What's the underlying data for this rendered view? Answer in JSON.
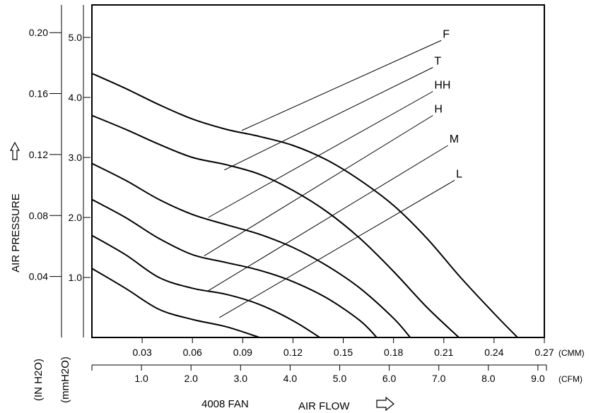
{
  "chart_data": {
    "type": "line",
    "title": "",
    "subtitle": "4008 FAN",
    "xlabel": "AIR FLOW",
    "ylabel": "AIR PRESSURE",
    "x_units": {
      "primary": "(CMM)",
      "secondary": "(CFM)"
    },
    "y_units": {
      "primary": "(mmH2O)",
      "secondary": "(IN H2O)"
    },
    "xlim": [
      0,
      0.27
    ],
    "ylim": [
      0,
      5.5
    ],
    "x_ticks_cmm": [
      "0.03",
      "0.06",
      "0.09",
      "0.12",
      "0.15",
      "0.18",
      "0.21",
      "0.24",
      "0.27"
    ],
    "x_ticks_cfm": [
      "1.0",
      "2.0",
      "3.0",
      "4.0",
      "5.0",
      "6.0",
      "7.0",
      "8.0",
      "9.0"
    ],
    "y_ticks_mmh2o": [
      "1.0",
      "2.0",
      "3.0",
      "4.0",
      "5.0"
    ],
    "y_ticks_inh2o": [
      "0.04",
      "0.08",
      "0.12",
      "0.16",
      "0.20"
    ],
    "grid": false,
    "series": [
      {
        "name": "F",
        "x": [
          0,
          0.02,
          0.04,
          0.06,
          0.08,
          0.1,
          0.12,
          0.14,
          0.16,
          0.18,
          0.2,
          0.22,
          0.24,
          0.254
        ],
        "y": [
          4.4,
          4.15,
          3.88,
          3.64,
          3.47,
          3.35,
          3.2,
          2.96,
          2.62,
          2.2,
          1.65,
          1.0,
          0.4,
          0
        ]
      },
      {
        "name": "T",
        "x": [
          0,
          0.02,
          0.04,
          0.06,
          0.08,
          0.1,
          0.12,
          0.14,
          0.16,
          0.18,
          0.2,
          0.219
        ],
        "y": [
          3.7,
          3.47,
          3.22,
          3.0,
          2.88,
          2.72,
          2.45,
          2.1,
          1.65,
          1.1,
          0.5,
          0
        ]
      },
      {
        "name": "HH",
        "x": [
          0,
          0.02,
          0.04,
          0.06,
          0.08,
          0.1,
          0.12,
          0.14,
          0.16,
          0.18,
          0.19
        ],
        "y": [
          2.9,
          2.62,
          2.3,
          2.05,
          1.88,
          1.72,
          1.5,
          1.2,
          0.82,
          0.32,
          0
        ]
      },
      {
        "name": "H",
        "x": [
          0,
          0.02,
          0.04,
          0.06,
          0.08,
          0.1,
          0.12,
          0.14,
          0.16,
          0.17
        ],
        "y": [
          2.3,
          2.0,
          1.65,
          1.38,
          1.25,
          1.12,
          0.93,
          0.66,
          0.28,
          0
        ]
      },
      {
        "name": "M",
        "x": [
          0,
          0.02,
          0.04,
          0.06,
          0.08,
          0.1,
          0.12,
          0.136
        ],
        "y": [
          1.7,
          1.38,
          1.0,
          0.82,
          0.72,
          0.55,
          0.28,
          0
        ]
      },
      {
        "name": "L",
        "x": [
          0,
          0.02,
          0.04,
          0.06,
          0.08,
          0.1
        ],
        "y": [
          1.15,
          0.82,
          0.47,
          0.3,
          0.18,
          0
        ]
      }
    ],
    "leaders": [
      {
        "name": "F",
        "from": [
          0.0895,
          3.45
        ],
        "to": [
          0.2085,
          4.95
        ]
      },
      {
        "name": "T",
        "from": [
          0.079,
          2.79
        ],
        "to": [
          0.2035,
          4.5
        ]
      },
      {
        "name": "HH",
        "from": [
          0.0695,
          2.0
        ],
        "to": [
          0.2035,
          4.1
        ]
      },
      {
        "name": "H",
        "from": [
          0.067,
          1.36
        ],
        "to": [
          0.2035,
          3.7
        ]
      },
      {
        "name": "M",
        "from": [
          0.0695,
          0.78
        ],
        "to": [
          0.2125,
          3.2
        ]
      },
      {
        "name": "L",
        "from": [
          0.076,
          0.33
        ],
        "to": [
          0.2165,
          2.62
        ]
      }
    ]
  }
}
